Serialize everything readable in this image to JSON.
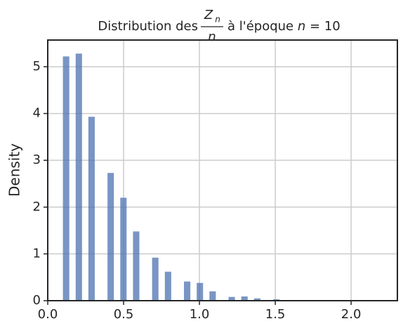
{
  "chart_data": {
    "type": "histogram",
    "title": {
      "lead": "Distribution des",
      "numerator": "Z",
      "numerator_subscript": "n",
      "denominator": "n",
      "tail": "à l'époque",
      "variable": "n",
      "equals": "= 10"
    },
    "ylabel": "Density",
    "bins": [
      0.1,
      0.142,
      0.184,
      0.226,
      0.268,
      0.31,
      0.352,
      0.394,
      0.436,
      0.478,
      0.52,
      0.562,
      0.604,
      0.646,
      0.688,
      0.73,
      0.772,
      0.814,
      0.856,
      0.898,
      0.94,
      0.982,
      1.024,
      1.066,
      1.108,
      1.15,
      1.192,
      1.234,
      1.276,
      1.318,
      1.36,
      1.402,
      1.444,
      1.486,
      1.528,
      1.57,
      1.612,
      1.654,
      1.696,
      1.738,
      1.78,
      1.822,
      1.864,
      1.906,
      1.948,
      1.99,
      2.032,
      2.074,
      2.116,
      2.158,
      2.2
    ],
    "values": [
      5.22,
      0,
      5.28,
      0,
      3.93,
      0,
      0,
      2.73,
      0,
      2.2,
      0,
      1.48,
      0,
      0,
      0.92,
      0,
      0.62,
      0,
      0,
      0.41,
      0,
      0.38,
      0,
      0.2,
      0,
      0,
      0.08,
      0,
      0.09,
      0,
      0.05,
      0,
      0,
      0.03,
      0,
      0.015,
      0,
      0,
      0.01,
      0,
      0.01,
      0,
      0.005,
      0,
      0,
      0.005,
      0,
      0.003,
      0,
      0.002
    ],
    "color": "#4c72b0",
    "xlim": [
      0,
      2.305
    ],
    "ylim": [
      0,
      5.57
    ],
    "xticks": [
      {
        "value": 0,
        "label": "0.0"
      },
      0.5,
      {
        "value": 1,
        "label": "1.0"
      },
      1.5,
      {
        "value": 2,
        "label": "2.0"
      }
    ],
    "yticks": [
      0,
      1,
      2,
      3,
      4,
      5
    ],
    "grid": true
  }
}
